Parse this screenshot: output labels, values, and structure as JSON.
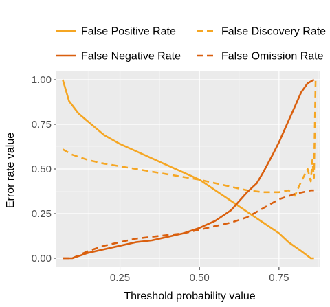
{
  "chart_data": {
    "type": "line",
    "xlabel": "Threshold probability value",
    "ylabel": "Error rate value",
    "xlim": [
      0.05,
      0.88
    ],
    "ylim": [
      -0.05,
      1.05
    ],
    "xticks": [
      0.25,
      0.5,
      0.75
    ],
    "xtick_labels": [
      "0.25",
      "0.50",
      "0.75"
    ],
    "yticks": [
      0,
      0.25,
      0.5,
      0.75,
      1.0
    ],
    "ytick_labels": [
      "0.00",
      "0.25",
      "0.50",
      "0.75",
      "1.00"
    ],
    "grid": true,
    "legend_position": "top",
    "series": [
      {
        "name": "False Positive Rate",
        "color": "#F5A623",
        "dash": "solid",
        "x": [
          0.07,
          0.09,
          0.12,
          0.16,
          0.2,
          0.25,
          0.3,
          0.35,
          0.4,
          0.45,
          0.5,
          0.55,
          0.6,
          0.65,
          0.7,
          0.75,
          0.78,
          0.82,
          0.85,
          0.86
        ],
        "y": [
          1.0,
          0.88,
          0.81,
          0.75,
          0.69,
          0.64,
          0.6,
          0.56,
          0.52,
          0.48,
          0.44,
          0.38,
          0.32,
          0.26,
          0.2,
          0.14,
          0.09,
          0.04,
          0.0,
          0.0
        ]
      },
      {
        "name": "False Discovery Rate",
        "color": "#F5A623",
        "dash": "dashed",
        "x": [
          0.07,
          0.1,
          0.15,
          0.2,
          0.3,
          0.4,
          0.5,
          0.6,
          0.65,
          0.7,
          0.75,
          0.78,
          0.8,
          0.82,
          0.84,
          0.85,
          0.855,
          0.86,
          0.865
        ],
        "y": [
          0.61,
          0.58,
          0.55,
          0.53,
          0.5,
          0.47,
          0.44,
          0.4,
          0.38,
          0.37,
          0.37,
          0.38,
          0.35,
          0.43,
          0.5,
          0.43,
          0.55,
          0.45,
          1.0
        ]
      },
      {
        "name": "False Negative Rate",
        "color": "#D95F0E",
        "dash": "solid",
        "x": [
          0.07,
          0.1,
          0.15,
          0.2,
          0.25,
          0.3,
          0.35,
          0.4,
          0.45,
          0.5,
          0.55,
          0.6,
          0.65,
          0.68,
          0.7,
          0.73,
          0.75,
          0.78,
          0.8,
          0.82,
          0.84,
          0.86
        ],
        "y": [
          0.0,
          0.0,
          0.03,
          0.05,
          0.07,
          0.09,
          0.1,
          0.12,
          0.14,
          0.17,
          0.21,
          0.27,
          0.37,
          0.42,
          0.48,
          0.58,
          0.65,
          0.77,
          0.85,
          0.93,
          0.98,
          1.0
        ]
      },
      {
        "name": "False Omission Rate",
        "color": "#D95F0E",
        "dash": "dashed",
        "x": [
          0.07,
          0.1,
          0.15,
          0.2,
          0.25,
          0.3,
          0.35,
          0.4,
          0.45,
          0.5,
          0.55,
          0.6,
          0.65,
          0.7,
          0.75,
          0.8,
          0.85,
          0.86
        ],
        "y": [
          0.0,
          0.0,
          0.04,
          0.07,
          0.09,
          0.11,
          0.12,
          0.13,
          0.14,
          0.16,
          0.18,
          0.2,
          0.23,
          0.28,
          0.33,
          0.36,
          0.38,
          0.38
        ]
      }
    ]
  }
}
